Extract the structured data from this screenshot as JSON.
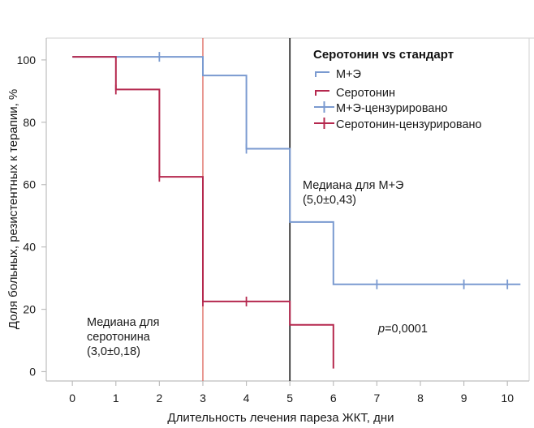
{
  "chart_data": {
    "type": "line",
    "step": true,
    "title": "",
    "xlabel": "Длительность лечения пареза ЖКТ, дни",
    "ylabel": "Доля больных, резистентных к терапии, %",
    "xlim": [
      -0.6,
      10.5
    ],
    "ylim": [
      -3,
      107
    ],
    "xticks": [
      "0",
      "1",
      "2",
      "3",
      "4",
      "5",
      "6",
      "7",
      "8",
      "9",
      "10"
    ],
    "yticks": [
      "0",
      "20",
      "40",
      "60",
      "80",
      "100"
    ],
    "grid": false,
    "legend": {
      "title": "Серотонин vs стандарт",
      "placement": "top-right",
      "entries": [
        "М+Э",
        "Серотонин",
        "М+Э-цензурировано",
        "Серотонин-цензурировано"
      ]
    },
    "series": [
      {
        "name": "М+Э",
        "color": "#7a9ad0",
        "steps": [
          [
            0,
            101
          ],
          [
            3,
            101
          ],
          [
            3,
            95
          ],
          [
            4,
            95
          ],
          [
            4,
            71.5
          ],
          [
            5,
            71.5
          ],
          [
            5,
            48
          ],
          [
            6,
            48
          ],
          [
            6,
            28
          ],
          [
            10.3,
            28
          ]
        ],
        "censored": [
          [
            2,
            101
          ],
          [
            4,
            71.5
          ],
          [
            7,
            28
          ],
          [
            9,
            28
          ],
          [
            10,
            28
          ]
        ]
      },
      {
        "name": "Серотонин",
        "color": "#b5284e",
        "steps": [
          [
            0,
            101
          ],
          [
            1,
            101
          ],
          [
            1,
            90.5
          ],
          [
            2,
            90.5
          ],
          [
            2,
            62.5
          ],
          [
            3,
            62.5
          ],
          [
            3,
            22.5
          ],
          [
            5,
            22.5
          ],
          [
            5,
            15
          ],
          [
            6,
            15
          ],
          [
            6,
            1
          ]
        ],
        "censored": [
          [
            1,
            90.5
          ],
          [
            2,
            62.5
          ],
          [
            3,
            22.5
          ],
          [
            4,
            22.5
          ]
        ]
      }
    ],
    "vlines": [
      {
        "x": 3,
        "color": "#e07066"
      },
      {
        "x": 5,
        "color": "#333333"
      }
    ],
    "annotations": {
      "median_me": [
        "Медиана для М+Э",
        "(5,0±0,43)"
      ],
      "median_ser": [
        "Медиана для",
        "серотонина",
        "(3,0±0,18)"
      ],
      "p_symbol": "p",
      "p_value": "=0,0001"
    }
  }
}
